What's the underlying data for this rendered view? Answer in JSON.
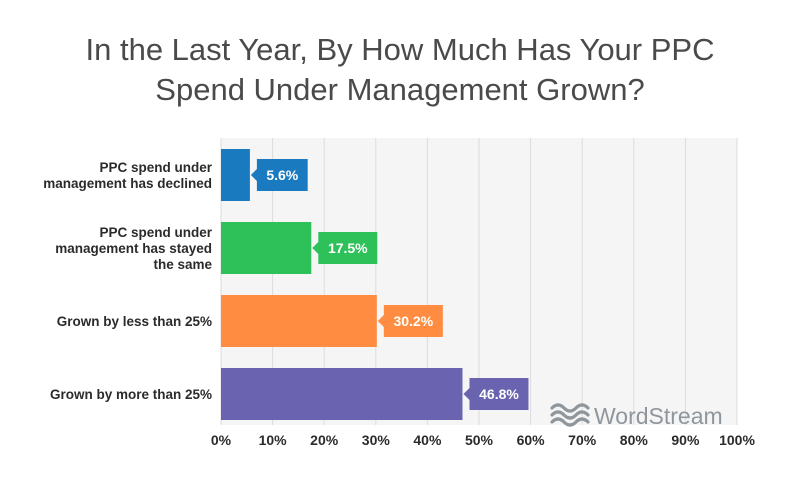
{
  "chart_data": {
    "type": "bar",
    "orientation": "horizontal",
    "title": "In the Last Year, By How Much Has Your PPC Spend Under Management Grown?",
    "title_lines": [
      "In the Last Year, By How Much Has Your PPC",
      "Spend Under Management Grown?"
    ],
    "categories": [
      [
        "PPC spend under",
        "management has declined"
      ],
      [
        "PPC spend under",
        "management has stayed",
        "the same"
      ],
      [
        "Grown by less than 25%"
      ],
      [
        "Grown by more than 25%"
      ]
    ],
    "values": [
      5.6,
      17.5,
      30.2,
      46.8
    ],
    "value_labels": [
      "5.6%",
      "17.5%",
      "30.2%",
      "46.8%"
    ],
    "colors": [
      "#1a7abf",
      "#2ec15a",
      "#ff8c40",
      "#6a64b0"
    ],
    "xlim": [
      0,
      100
    ],
    "xticks": [
      0,
      10,
      20,
      30,
      40,
      50,
      60,
      70,
      80,
      90,
      100
    ],
    "xtick_labels": [
      "0%",
      "10%",
      "20%",
      "30%",
      "40%",
      "50%",
      "60%",
      "70%",
      "80%",
      "90%",
      "100%"
    ],
    "grid": true,
    "grid_color": "#dcdcdc",
    "plot_background": "#f5f5f5",
    "xlabel": "",
    "ylabel": ""
  },
  "brand": {
    "name": "WordStream",
    "icon": "wave-logo-icon",
    "color": "#8f969c"
  }
}
